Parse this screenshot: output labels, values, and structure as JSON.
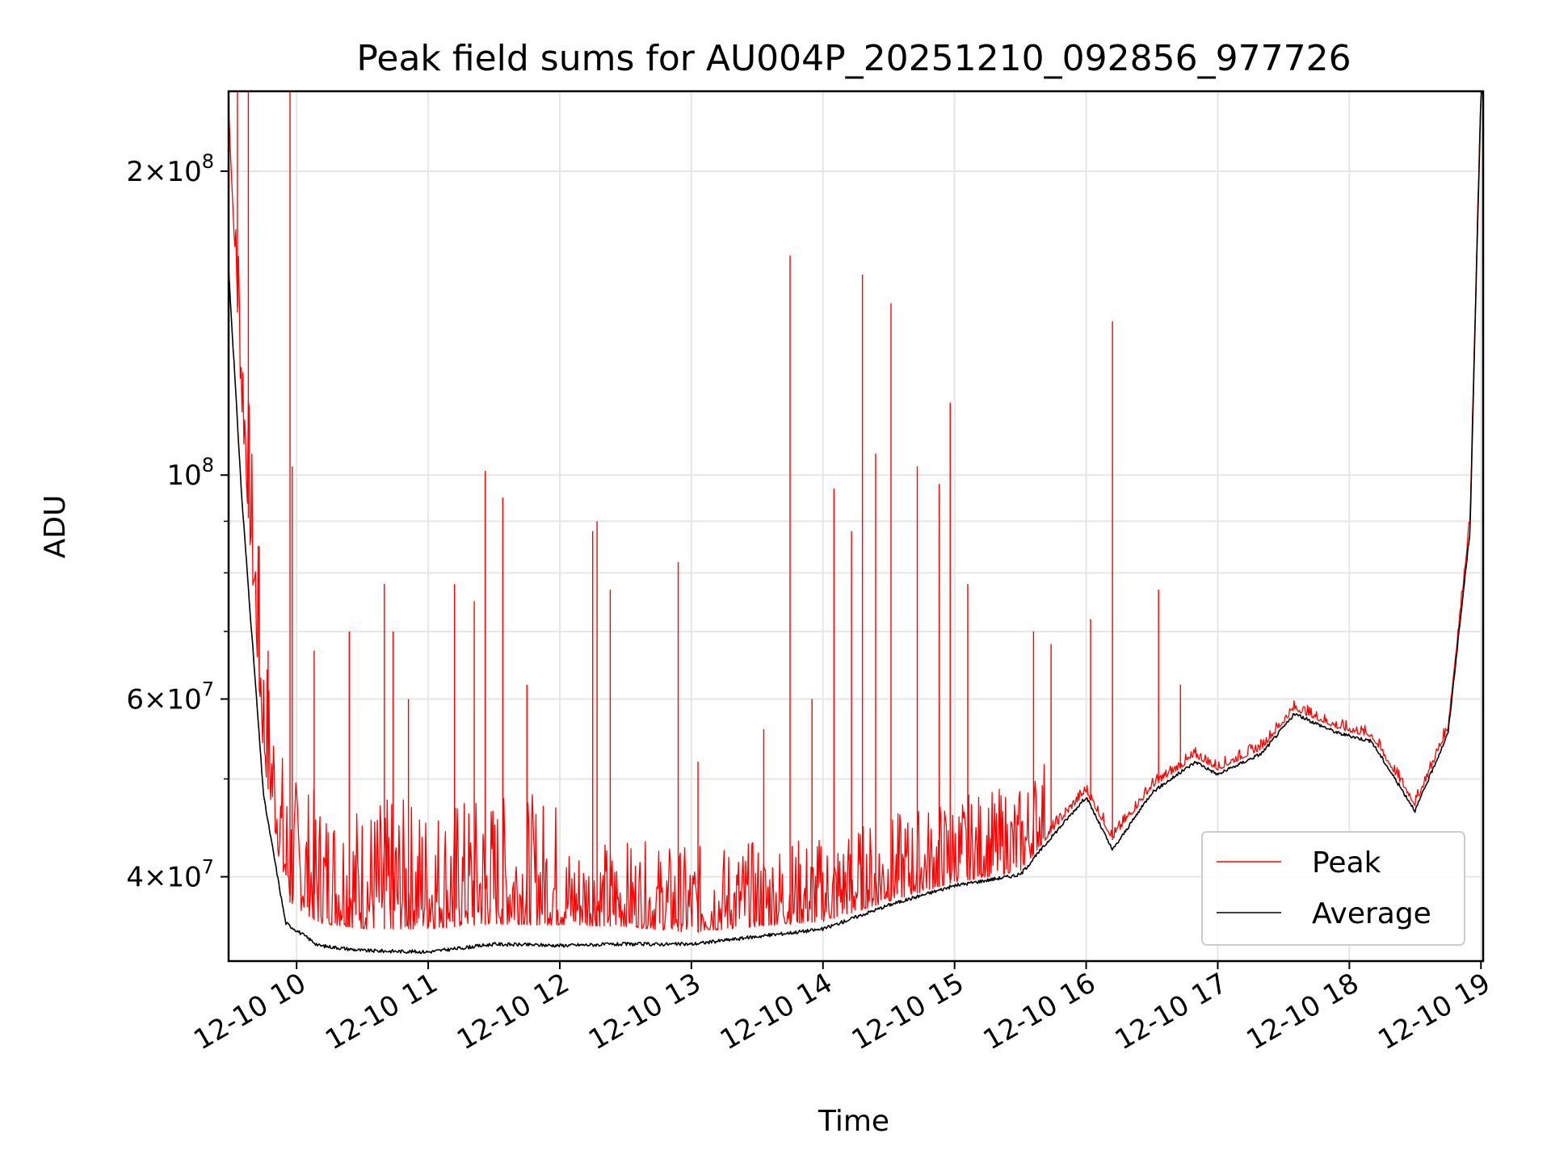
{
  "chart_data": {
    "type": "line",
    "title": "Peak field sums for AU004P_20251210_092856_977726",
    "xlabel": "Time",
    "ylabel": "ADU",
    "y_scale": "log",
    "xlim": [
      "2025-12-10 09:29",
      "2025-12-10 19:01"
    ],
    "ylim": [
      33000000.0,
      240000000.0
    ],
    "grid": true,
    "legend_position": "lower-right",
    "x_ticks": [
      {
        "value": "2025-12-10 10:00",
        "label": "12-10 10"
      },
      {
        "value": "2025-12-10 11:00",
        "label": "12-10 11"
      },
      {
        "value": "2025-12-10 12:00",
        "label": "12-10 12"
      },
      {
        "value": "2025-12-10 13:00",
        "label": "12-10 13"
      },
      {
        "value": "2025-12-10 14:00",
        "label": "12-10 14"
      },
      {
        "value": "2025-12-10 15:00",
        "label": "12-10 15"
      },
      {
        "value": "2025-12-10 16:00",
        "label": "12-10 16"
      },
      {
        "value": "2025-12-10 17:00",
        "label": "12-10 17"
      },
      {
        "value": "2025-12-10 18:00",
        "label": "12-10 18"
      },
      {
        "value": "2025-12-10 19:00",
        "label": "12-10 19"
      }
    ],
    "y_major_ticks": [
      {
        "value": 40000000,
        "mantissa": "4",
        "exp": "7"
      },
      {
        "value": 60000000,
        "mantissa": "6",
        "exp": "7"
      },
      {
        "value": 100000000,
        "mantissa": "",
        "exp": "8"
      },
      {
        "value": 200000000,
        "mantissa": "2",
        "exp": "8"
      }
    ],
    "y_minor_ticks": [
      50000000,
      70000000,
      80000000,
      90000000
    ],
    "series": [
      {
        "name": "Peak",
        "color": "#ff0000",
        "baseline": [
          {
            "x": "2025-12-10 09:29",
            "y": 230000000
          },
          {
            "x": "2025-12-10 09:35",
            "y": 115000000
          },
          {
            "x": "2025-12-10 09:45",
            "y": 52000000
          },
          {
            "x": "2025-12-10 09:55",
            "y": 38000000
          },
          {
            "x": "2025-12-10 10:10",
            "y": 36000000
          },
          {
            "x": "2025-12-10 10:30",
            "y": 35500000
          },
          {
            "x": "2025-12-10 11:00",
            "y": 35500000
          },
          {
            "x": "2025-12-10 11:30",
            "y": 35900000
          },
          {
            "x": "2025-12-10 12:00",
            "y": 35800000
          },
          {
            "x": "2025-12-10 12:30",
            "y": 35700000
          },
          {
            "x": "2025-12-10 13:00",
            "y": 35200000
          },
          {
            "x": "2025-12-10 13:30",
            "y": 35700000
          },
          {
            "x": "2025-12-10 14:00",
            "y": 36100000
          },
          {
            "x": "2025-12-10 14:30",
            "y": 37800000
          },
          {
            "x": "2025-12-10 15:00",
            "y": 39500000
          },
          {
            "x": "2025-12-10 15:30",
            "y": 40500000
          },
          {
            "x": "2025-12-10 15:45",
            "y": 44500000
          },
          {
            "x": "2025-12-10 16:00",
            "y": 48500000
          },
          {
            "x": "2025-12-10 16:12",
            "y": 43500000
          },
          {
            "x": "2025-12-10 16:30",
            "y": 49000000
          },
          {
            "x": "2025-12-10 16:50",
            "y": 52500000
          },
          {
            "x": "2025-12-10 17:00",
            "y": 51000000
          },
          {
            "x": "2025-12-10 17:20",
            "y": 53500000
          },
          {
            "x": "2025-12-10 17:35",
            "y": 58500000
          },
          {
            "x": "2025-12-10 17:55",
            "y": 56000000
          },
          {
            "x": "2025-12-10 18:10",
            "y": 55000000
          },
          {
            "x": "2025-12-10 18:30",
            "y": 47000000
          },
          {
            "x": "2025-12-10 18:45",
            "y": 56000000
          },
          {
            "x": "2025-12-10 18:55",
            "y": 90000000
          },
          {
            "x": "2025-12-10 19:00",
            "y": 240000000
          }
        ],
        "spikes": [
          {
            "x": "2025-12-10 09:33",
            "y": 240000000
          },
          {
            "x": "2025-12-10 09:38",
            "y": 240000000
          },
          {
            "x": "2025-12-10 09:43",
            "y": 85000000
          },
          {
            "x": "2025-12-10 09:47",
            "y": 67000000
          },
          {
            "x": "2025-12-10 09:57",
            "y": 240000000
          },
          {
            "x": "2025-12-10 09:58",
            "y": 102000000
          },
          {
            "x": "2025-12-10 10:08",
            "y": 67000000
          },
          {
            "x": "2025-12-10 10:24",
            "y": 70000000
          },
          {
            "x": "2025-12-10 10:40",
            "y": 78000000
          },
          {
            "x": "2025-12-10 10:44",
            "y": 70000000
          },
          {
            "x": "2025-12-10 10:51",
            "y": 60000000
          },
          {
            "x": "2025-12-10 11:12",
            "y": 78000000
          },
          {
            "x": "2025-12-10 11:21",
            "y": 75000000
          },
          {
            "x": "2025-12-10 11:26",
            "y": 101000000
          },
          {
            "x": "2025-12-10 11:34",
            "y": 95000000
          },
          {
            "x": "2025-12-10 11:45",
            "y": 62000000
          },
          {
            "x": "2025-12-10 12:15",
            "y": 88000000
          },
          {
            "x": "2025-12-10 12:17",
            "y": 90000000
          },
          {
            "x": "2025-12-10 12:23",
            "y": 77000000
          },
          {
            "x": "2025-12-10 12:54",
            "y": 82000000
          },
          {
            "x": "2025-12-10 13:03",
            "y": 52000000
          },
          {
            "x": "2025-12-10 13:33",
            "y": 56000000
          },
          {
            "x": "2025-12-10 13:45",
            "y": 165000000
          },
          {
            "x": "2025-12-10 13:55",
            "y": 60000000
          },
          {
            "x": "2025-12-10 14:05",
            "y": 97000000
          },
          {
            "x": "2025-12-10 14:13",
            "y": 88000000
          },
          {
            "x": "2025-12-10 14:18",
            "y": 158000000
          },
          {
            "x": "2025-12-10 14:24",
            "y": 105000000
          },
          {
            "x": "2025-12-10 14:31",
            "y": 148000000
          },
          {
            "x": "2025-12-10 14:43",
            "y": 102000000
          },
          {
            "x": "2025-12-10 14:53",
            "y": 98000000
          },
          {
            "x": "2025-12-10 14:58",
            "y": 118000000
          },
          {
            "x": "2025-12-10 15:06",
            "y": 78000000
          },
          {
            "x": "2025-12-10 15:36",
            "y": 70000000
          },
          {
            "x": "2025-12-10 15:44",
            "y": 68000000
          },
          {
            "x": "2025-12-10 16:02",
            "y": 72000000
          },
          {
            "x": "2025-12-10 16:12",
            "y": 142000000
          },
          {
            "x": "2025-12-10 16:33",
            "y": 77000000
          },
          {
            "x": "2025-12-10 16:43",
            "y": 62000000
          }
        ]
      },
      {
        "name": "Average",
        "color": "#000000",
        "points": [
          {
            "x": "2025-12-10 09:29",
            "y": 160000000
          },
          {
            "x": "2025-12-10 09:35",
            "y": 95000000
          },
          {
            "x": "2025-12-10 09:45",
            "y": 48000000
          },
          {
            "x": "2025-12-10 09:55",
            "y": 36000000
          },
          {
            "x": "2025-12-10 10:10",
            "y": 34200000
          },
          {
            "x": "2025-12-10 10:30",
            "y": 33800000
          },
          {
            "x": "2025-12-10 11:00",
            "y": 33700000
          },
          {
            "x": "2025-12-10 11:30",
            "y": 34300000
          },
          {
            "x": "2025-12-10 12:00",
            "y": 34200000
          },
          {
            "x": "2025-12-10 12:30",
            "y": 34300000
          },
          {
            "x": "2025-12-10 13:00",
            "y": 34300000
          },
          {
            "x": "2025-12-10 13:30",
            "y": 34900000
          },
          {
            "x": "2025-12-10 14:00",
            "y": 35500000
          },
          {
            "x": "2025-12-10 14:30",
            "y": 37500000
          },
          {
            "x": "2025-12-10 15:00",
            "y": 39200000
          },
          {
            "x": "2025-12-10 15:30",
            "y": 40200000
          },
          {
            "x": "2025-12-10 15:45",
            "y": 44000000
          },
          {
            "x": "2025-12-10 16:00",
            "y": 48000000
          },
          {
            "x": "2025-12-10 16:12",
            "y": 42500000
          },
          {
            "x": "2025-12-10 16:30",
            "y": 48500000
          },
          {
            "x": "2025-12-10 16:50",
            "y": 52000000
          },
          {
            "x": "2025-12-10 17:00",
            "y": 50500000
          },
          {
            "x": "2025-12-10 17:20",
            "y": 53000000
          },
          {
            "x": "2025-12-10 17:35",
            "y": 58000000
          },
          {
            "x": "2025-12-10 17:55",
            "y": 55500000
          },
          {
            "x": "2025-12-10 18:10",
            "y": 54500000
          },
          {
            "x": "2025-12-10 18:30",
            "y": 46500000
          },
          {
            "x": "2025-12-10 18:45",
            "y": 55500000
          },
          {
            "x": "2025-12-10 18:55",
            "y": 88000000
          },
          {
            "x": "2025-12-10 19:00",
            "y": 240000000
          }
        ]
      }
    ]
  }
}
